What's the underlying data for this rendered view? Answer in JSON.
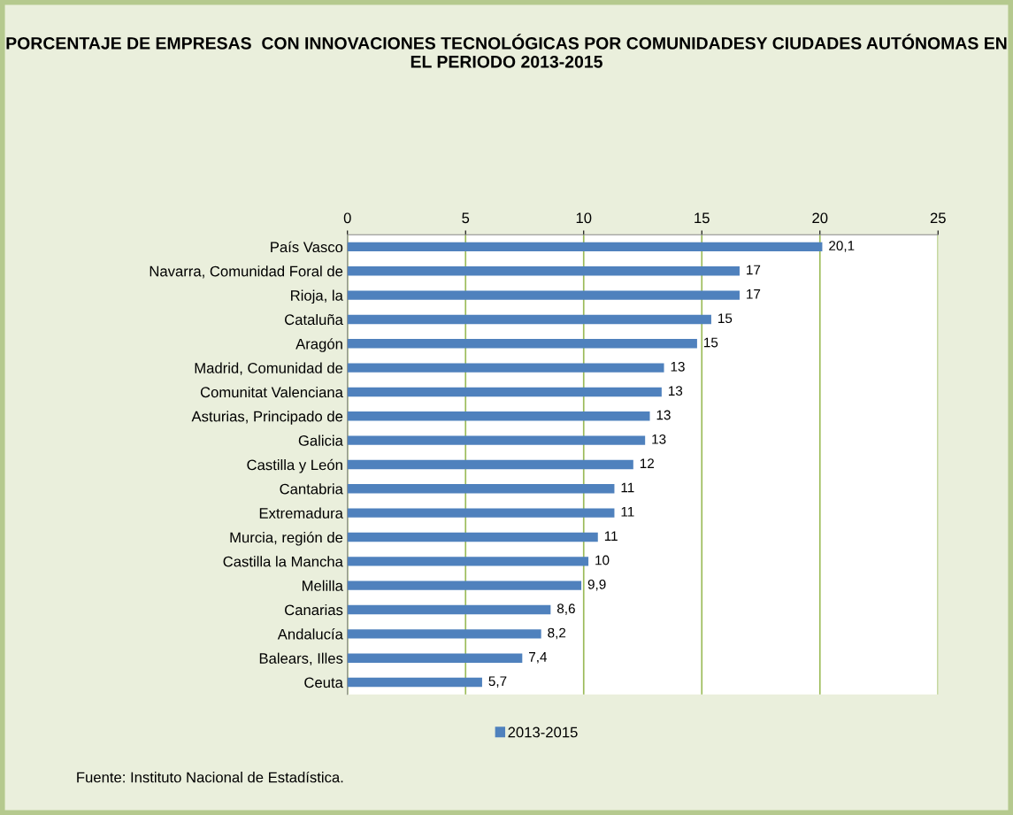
{
  "chart_data": {
    "type": "bar",
    "orientation": "horizontal",
    "title": "PORCENTAJE DE EMPRESAS  CON INNOVACIONES TECNOLÓGICAS POR COMUNIDADESY CIUDADES AUTÓNOMAS EN EL PERIODO 2013-2015",
    "categories": [
      "País Vasco",
      "Navarra, Comunidad Foral de",
      "Rioja, la",
      "Cataluña",
      "Aragón",
      "Madrid, Comunidad de",
      "Comunitat Valenciana",
      "Asturias, Principado de",
      "Galicia",
      "Castilla y León",
      "Cantabria",
      "Extremadura",
      "Murcia, región de",
      "Castilla la Mancha",
      "Melilla",
      "Canarias",
      "Andalucía",
      "Balears, Illes",
      "Ceuta"
    ],
    "series": [
      {
        "name": "2013-2015",
        "color": "#4f81bd",
        "values": [
          20.1,
          16.6,
          16.6,
          15.4,
          14.8,
          13.4,
          13.3,
          12.8,
          12.6,
          12.1,
          11.3,
          11.3,
          10.6,
          10.2,
          9.9,
          8.6,
          8.2,
          7.4,
          5.7
        ],
        "value_labels": [
          "20,1",
          "17",
          "17",
          "15",
          "15",
          "13",
          "13",
          "13",
          "13",
          "12",
          "11",
          "11",
          "11",
          "10",
          "9,9",
          "8,6",
          "8,2",
          "7,4",
          "5,7"
        ]
      }
    ],
    "xlim": [
      0,
      25
    ],
    "xticks": [
      0,
      5,
      10,
      15,
      20,
      25
    ],
    "grid": "x",
    "legend": "bottom",
    "annotations": [
      "Fuente: Instituto Nacional de Estadística."
    ]
  }
}
